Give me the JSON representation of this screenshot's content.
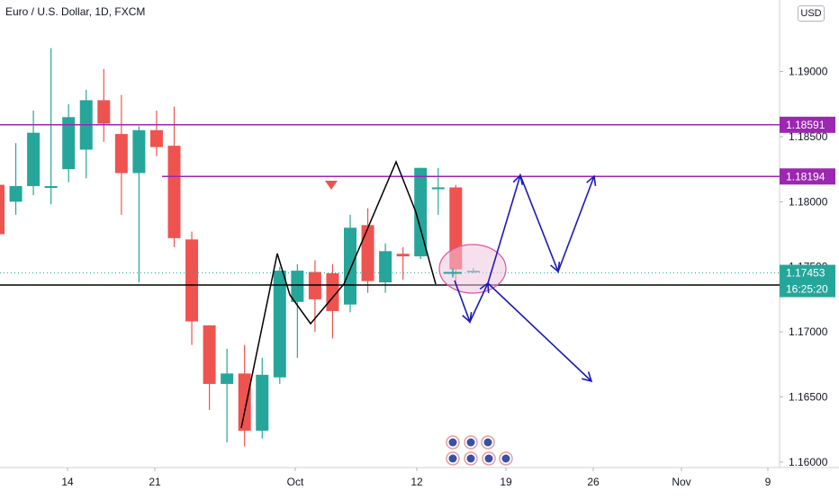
{
  "chart": {
    "title": "Euro / U.S. Dollar, 1D, FXCM",
    "currency_label": "USD"
  },
  "chart_data": {
    "type": "candlestick",
    "ylim": [
      1.1575,
      1.1955
    ],
    "y_ticks": [
      "1.19000",
      "1.18500",
      "1.18000",
      "1.17500",
      "1.17000",
      "1.16500",
      "1.16000"
    ],
    "y_tick_values": [
      1.19,
      1.185,
      1.18,
      1.175,
      1.17,
      1.165,
      1.16
    ],
    "x_labels": [
      "14",
      "21",
      "Oct",
      "12",
      "19",
      "26",
      "Nov",
      "9"
    ],
    "candles": [
      {
        "o": 1.1813,
        "h": 1.1833,
        "l": 1.1735,
        "c": 1.1775
      },
      {
        "o": 1.18,
        "h": 1.1845,
        "l": 1.179,
        "c": 1.1812
      },
      {
        "o": 1.1812,
        "h": 1.187,
        "l": 1.1805,
        "c": 1.1853
      },
      {
        "o": 1.1812,
        "h": 1.1918,
        "l": 1.1798,
        "c": 1.1812
      },
      {
        "o": 1.1825,
        "h": 1.1875,
        "l": 1.1815,
        "c": 1.1865
      },
      {
        "o": 1.184,
        "h": 1.1886,
        "l": 1.1818,
        "c": 1.1878
      },
      {
        "o": 1.1878,
        "h": 1.1902,
        "l": 1.1846,
        "c": 1.186
      },
      {
        "o": 1.1852,
        "h": 1.1882,
        "l": 1.179,
        "c": 1.1822
      },
      {
        "o": 1.1822,
        "h": 1.1858,
        "l": 1.1738,
        "c": 1.1855
      },
      {
        "o": 1.1855,
        "h": 1.187,
        "l": 1.1835,
        "c": 1.1842
      },
      {
        "o": 1.1843,
        "h": 1.1873,
        "l": 1.1765,
        "c": 1.1772
      },
      {
        "o": 1.1771,
        "h": 1.1777,
        "l": 1.169,
        "c": 1.1708
      },
      {
        "o": 1.1705,
        "h": 1.1705,
        "l": 1.164,
        "c": 1.166
      },
      {
        "o": 1.166,
        "h": 1.1687,
        "l": 1.1615,
        "c": 1.1668
      },
      {
        "o": 1.1668,
        "h": 1.169,
        "l": 1.1612,
        "c": 1.1624
      },
      {
        "o": 1.1624,
        "h": 1.168,
        "l": 1.1618,
        "c": 1.1667
      },
      {
        "o": 1.1665,
        "h": 1.175,
        "l": 1.166,
        "c": 1.1747
      },
      {
        "o": 1.1723,
        "h": 1.1752,
        "l": 1.168,
        "c": 1.1747
      },
      {
        "o": 1.1746,
        "h": 1.1755,
        "l": 1.17,
        "c": 1.1725
      },
      {
        "o": 1.1745,
        "h": 1.1752,
        "l": 1.1695,
        "c": 1.1716
      },
      {
        "o": 1.1721,
        "h": 1.179,
        "l": 1.1715,
        "c": 1.178
      },
      {
        "o": 1.1782,
        "h": 1.1795,
        "l": 1.173,
        "c": 1.1739
      },
      {
        "o": 1.1738,
        "h": 1.1768,
        "l": 1.173,
        "c": 1.1762
      },
      {
        "o": 1.176,
        "h": 1.1765,
        "l": 1.174,
        "c": 1.1758
      },
      {
        "o": 1.1758,
        "h": 1.1826,
        "l": 1.1756,
        "c": 1.1826
      },
      {
        "o": 1.1811,
        "h": 1.1826,
        "l": 1.179,
        "c": 1.1811
      },
      {
        "o": 1.1811,
        "h": 1.1813,
        "l": 1.1735,
        "c": 1.1748
      },
      {
        "o": 1.1747,
        "h": 1.1749,
        "l": 1.1745,
        "c": 1.1747
      }
    ],
    "horizontal_levels": [
      {
        "value": 1.18591,
        "label": "1.18591",
        "color": "#9c27b0"
      },
      {
        "value": 1.18194,
        "label": "1.18194",
        "color": "#9c27b0"
      },
      {
        "value": 1.1736,
        "label": "1.17360",
        "color": "#000000"
      }
    ],
    "last_price": {
      "value": 1.17453,
      "label": "1.17453",
      "countdown": "16:25:20",
      "color": "#26a69a"
    },
    "colors": {
      "up": "#26a69a",
      "down": "#ef5350",
      "projection": "#1a1ab8"
    }
  }
}
